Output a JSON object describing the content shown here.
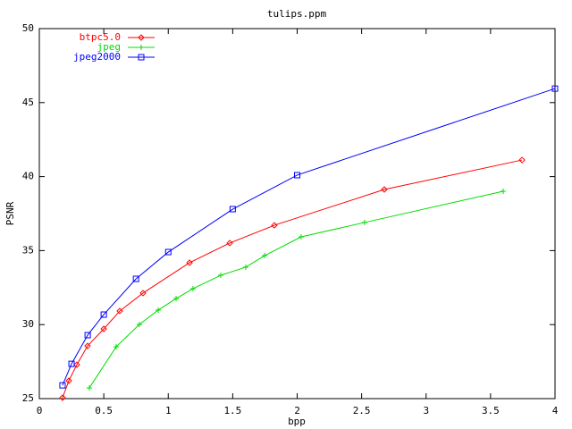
{
  "chart_data": {
    "type": "line",
    "title": "tulips.ppm",
    "x_label": "bpp",
    "y_label": "PSNR",
    "xlim": [
      0,
      4
    ],
    "ylim": [
      25,
      50
    ],
    "xticks": [
      0,
      0.5,
      1,
      1.5,
      2,
      2.5,
      3,
      3.5,
      4
    ],
    "yticks": [
      25,
      30,
      35,
      40,
      45,
      50
    ],
    "grid": false,
    "legend": "top-left",
    "series": [
      {
        "name": "btpc5.0",
        "color": "#ff0000",
        "marker": "diamond",
        "x": [
          0.18,
          0.229,
          0.291,
          0.374,
          0.5,
          0.624,
          0.804,
          1.165,
          1.477,
          1.823,
          2.676,
          3.744
        ],
        "values": [
          25.06,
          26.21,
          27.29,
          28.56,
          29.71,
          30.92,
          32.13,
          34.18,
          35.51,
          36.71,
          39.13,
          41.12
        ]
      },
      {
        "name": "jpeg",
        "color": "#00dd00",
        "marker": "plus",
        "x": [
          0.388,
          0.596,
          0.776,
          0.922,
          1.061,
          1.192,
          1.407,
          1.601,
          1.747,
          2.031,
          2.523,
          3.598
        ],
        "values": [
          25.72,
          28.5,
          30.01,
          30.98,
          31.76,
          32.43,
          33.33,
          33.88,
          34.66,
          35.93,
          36.9,
          39.01
        ]
      },
      {
        "name": "jpeg2000",
        "color": "#0000ff",
        "marker": "square",
        "x": [
          0.18,
          0.25,
          0.375,
          0.5,
          0.75,
          1.0,
          1.5,
          2.0,
          4.0
        ],
        "values": [
          25.9,
          27.35,
          29.29,
          30.68,
          33.09,
          34.9,
          37.8,
          40.1,
          45.95
        ]
      }
    ]
  }
}
